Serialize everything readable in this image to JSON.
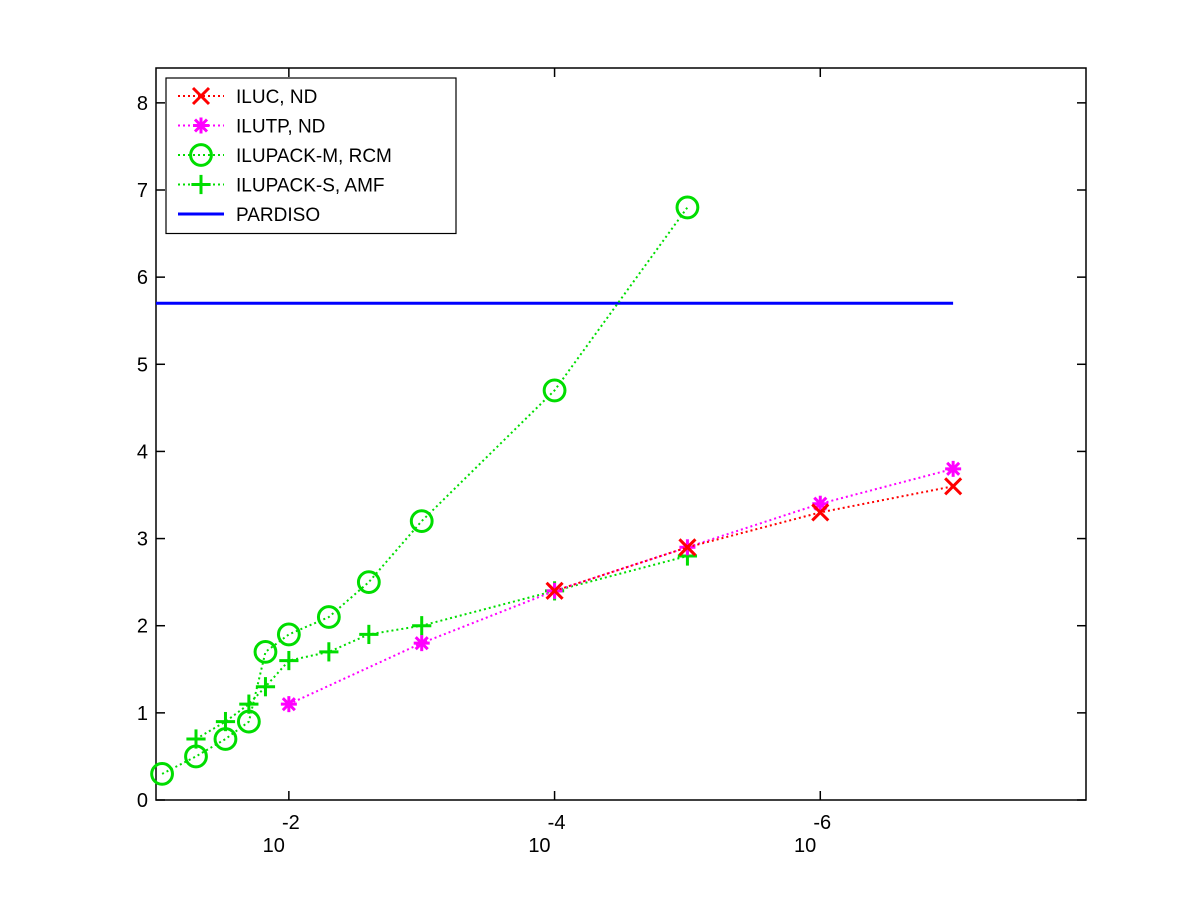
{
  "chart_data": {
    "type": "line",
    "title": "",
    "xlabel": "",
    "ylabel": "",
    "xscale": "log",
    "xaxis_reversed": true,
    "xlim": [
      0.1,
      1e-08
    ],
    "ylim": [
      0,
      8.4
    ],
    "grid": false,
    "legend_position": "top-left",
    "x_ticks": [
      {
        "value": 0.01,
        "base": "10",
        "exponent": "-2"
      },
      {
        "value": 0.0001,
        "base": "10",
        "exponent": "-4"
      },
      {
        "value": 1e-06,
        "base": "10",
        "exponent": "-6"
      }
    ],
    "y_ticks": [
      {
        "value": 0,
        "label": "0"
      },
      {
        "value": 1,
        "label": "1"
      },
      {
        "value": 2,
        "label": "2"
      },
      {
        "value": 3,
        "label": "3"
      },
      {
        "value": 4,
        "label": "4"
      },
      {
        "value": 5,
        "label": "5"
      },
      {
        "value": 6,
        "label": "6"
      },
      {
        "value": 7,
        "label": "7"
      },
      {
        "value": 8,
        "label": "8"
      }
    ],
    "series": [
      {
        "name": "ILUC,  ND",
        "color": "#ff0000",
        "marker": "x",
        "line_style": "dotted",
        "points": [
          [
            0.0001,
            2.4
          ],
          [
            1e-05,
            2.9
          ],
          [
            1e-06,
            3.3
          ],
          [
            1e-07,
            3.6
          ]
        ]
      },
      {
        "name": "ILUTP,  ND",
        "color": "#ff00ff",
        "marker": "asterisk",
        "line_style": "dotted",
        "points": [
          [
            0.01,
            1.1
          ],
          [
            0.001,
            1.8
          ],
          [
            0.0001,
            2.4
          ],
          [
            1e-05,
            2.9
          ],
          [
            1e-06,
            3.4
          ],
          [
            1e-07,
            3.8
          ]
        ]
      },
      {
        "name": "ILUPACK-M, RCM",
        "color": "#00dd00",
        "marker": "circle",
        "line_style": "dotted",
        "points": [
          [
            0.09,
            0.3
          ],
          [
            0.05,
            0.5
          ],
          [
            0.03,
            0.7
          ],
          [
            0.02,
            0.9
          ],
          [
            0.015,
            1.7
          ],
          [
            0.01,
            1.9
          ],
          [
            0.005,
            2.1
          ],
          [
            0.0025,
            2.5
          ],
          [
            0.001,
            3.2
          ],
          [
            0.0001,
            4.7
          ],
          [
            1e-05,
            6.8
          ]
        ]
      },
      {
        "name": "ILUPACK-S, AMF",
        "color": "#00dd00",
        "marker": "plus",
        "line_style": "dotted",
        "points": [
          [
            0.05,
            0.7
          ],
          [
            0.03,
            0.9
          ],
          [
            0.02,
            1.1
          ],
          [
            0.015,
            1.3
          ],
          [
            0.01,
            1.6
          ],
          [
            0.005,
            1.7
          ],
          [
            0.0025,
            1.9
          ],
          [
            0.001,
            2.0
          ],
          [
            0.0001,
            2.4
          ],
          [
            1e-05,
            2.8
          ]
        ]
      },
      {
        "name": "PARDISO",
        "color": "#0000ff",
        "marker": "none",
        "line_style": "solid",
        "points": [
          [
            0.1,
            5.7
          ],
          [
            1e-07,
            5.7
          ]
        ]
      }
    ]
  }
}
